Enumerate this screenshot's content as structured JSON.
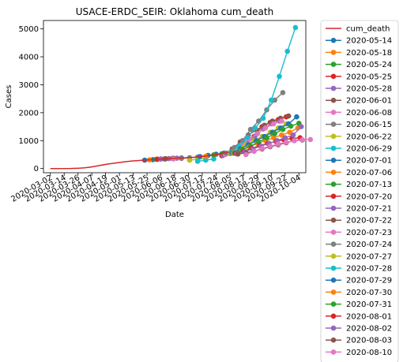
{
  "chart_data": {
    "type": "line",
    "title": "USACE-ERDC_SEIR: Oklahoma cum_death",
    "xlabel": "Date",
    "ylabel": "Cases",
    "x_ticks": [
      "2020-03-02",
      "2020-03-14",
      "2020-03-26",
      "2020-04-07",
      "2020-04-19",
      "2020-05-01",
      "2020-05-13",
      "2020-05-25",
      "2020-06-06",
      "2020-06-18",
      "2020-06-30",
      "2020-07-12",
      "2020-07-24",
      "2020-08-05",
      "2020-08-17",
      "2020-08-29",
      "2020-09-10",
      "2020-09-22",
      "2020-10-04"
    ],
    "x_range": [
      "2020-02-25",
      "2020-10-10"
    ],
    "y_ticks": [
      0,
      1000,
      2000,
      3000,
      4000,
      5000
    ],
    "ylim": [
      -150,
      5300
    ],
    "grid": false,
    "legend_position": "outside-right",
    "observed": {
      "name": "cum_death",
      "color": "#d62728",
      "points": [
        [
          "2020-03-02",
          0
        ],
        [
          "2020-03-20",
          2
        ],
        [
          "2020-03-27",
          10
        ],
        [
          "2020-04-01",
          25
        ],
        [
          "2020-04-07",
          60
        ],
        [
          "2020-04-14",
          110
        ],
        [
          "2020-04-21",
          160
        ],
        [
          "2020-04-28",
          200
        ],
        [
          "2020-05-05",
          240
        ],
        [
          "2020-05-12",
          270
        ],
        [
          "2020-05-19",
          290
        ],
        [
          "2020-05-26",
          310
        ],
        [
          "2020-06-02",
          330
        ],
        [
          "2020-06-09",
          345
        ],
        [
          "2020-06-16",
          360
        ],
        [
          "2020-06-23",
          375
        ],
        [
          "2020-06-30",
          390
        ],
        [
          "2020-07-07",
          410
        ],
        [
          "2020-07-14",
          440
        ],
        [
          "2020-07-21",
          480
        ],
        [
          "2020-07-28",
          530
        ],
        [
          "2020-08-04",
          580
        ]
      ]
    },
    "series": [
      {
        "name": "2020-05-14",
        "color": "#1f77b4",
        "points": [
          [
            "2020-05-23",
            300
          ],
          [
            "2020-05-30",
            320
          ],
          [
            "2020-06-06",
            340
          ]
        ]
      },
      {
        "name": "2020-05-18",
        "color": "#ff7f0e",
        "points": [
          [
            "2020-05-27",
            310
          ],
          [
            "2020-06-03",
            330
          ],
          [
            "2020-06-10",
            345
          ]
        ]
      },
      {
        "name": "2020-05-24",
        "color": "#2ca02c",
        "points": [
          [
            "2020-06-02",
            330
          ],
          [
            "2020-06-09",
            345
          ],
          [
            "2020-06-16",
            360
          ]
        ]
      },
      {
        "name": "2020-05-25",
        "color": "#d62728",
        "points": [
          [
            "2020-06-03",
            335
          ],
          [
            "2020-06-10",
            350
          ],
          [
            "2020-06-17",
            365
          ]
        ]
      },
      {
        "name": "2020-05-28",
        "color": "#9467bd",
        "points": [
          [
            "2020-06-06",
            340
          ],
          [
            "2020-06-13",
            355
          ],
          [
            "2020-06-20",
            370
          ]
        ]
      },
      {
        "name": "2020-06-01",
        "color": "#8c564b",
        "points": [
          [
            "2020-06-10",
            350
          ],
          [
            "2020-06-17",
            365
          ],
          [
            "2020-06-24",
            380
          ]
        ]
      },
      {
        "name": "2020-06-08",
        "color": "#e377c2",
        "points": [
          [
            "2020-06-17",
            340
          ],
          [
            "2020-06-24",
            360
          ],
          [
            "2020-07-01",
            380
          ]
        ]
      },
      {
        "name": "2020-06-15",
        "color": "#7f7f7f",
        "points": [
          [
            "2020-06-24",
            370
          ],
          [
            "2020-07-01",
            390
          ],
          [
            "2020-07-08",
            410
          ]
        ]
      },
      {
        "name": "2020-06-22",
        "color": "#bcbd22",
        "points": [
          [
            "2020-07-01",
            300
          ],
          [
            "2020-07-08",
            330
          ],
          [
            "2020-07-15",
            360
          ]
        ]
      },
      {
        "name": "2020-06-29",
        "color": "#17becf",
        "points": [
          [
            "2020-07-08",
            260
          ],
          [
            "2020-07-15",
            300
          ],
          [
            "2020-07-22",
            340
          ]
        ]
      },
      {
        "name": "2020-07-01",
        "color": "#1f77b4",
        "points": [
          [
            "2020-07-10",
            430
          ],
          [
            "2020-07-17",
            470
          ],
          [
            "2020-07-24",
            510
          ],
          [
            "2020-07-31",
            550
          ]
        ]
      },
      {
        "name": "2020-07-06",
        "color": "#ff7f0e",
        "points": [
          [
            "2020-07-15",
            440
          ],
          [
            "2020-07-22",
            480
          ],
          [
            "2020-07-29",
            520
          ]
        ]
      },
      {
        "name": "2020-07-13",
        "color": "#2ca02c",
        "points": [
          [
            "2020-07-22",
            490
          ],
          [
            "2020-07-29",
            530
          ],
          [
            "2020-08-05",
            570
          ]
        ]
      },
      {
        "name": "2020-07-20",
        "color": "#d62728",
        "points": [
          [
            "2020-07-29",
            460
          ],
          [
            "2020-08-05",
            540
          ],
          [
            "2020-08-12",
            680
          ],
          [
            "2020-08-19",
            900
          ],
          [
            "2020-08-26",
            1150
          ],
          [
            "2020-09-02",
            1500
          ],
          [
            "2020-09-09",
            1650
          ],
          [
            "2020-09-16",
            1750
          ],
          [
            "2020-09-23",
            1850
          ]
        ]
      },
      {
        "name": "2020-07-21",
        "color": "#9467bd",
        "points": [
          [
            "2020-07-30",
            470
          ],
          [
            "2020-08-06",
            550
          ],
          [
            "2020-08-13",
            700
          ],
          [
            "2020-08-20",
            920
          ],
          [
            "2020-08-27",
            1170
          ],
          [
            "2020-09-03",
            1420
          ],
          [
            "2020-09-10",
            1600
          ],
          [
            "2020-09-17",
            1700
          ]
        ]
      },
      {
        "name": "2020-07-22",
        "color": "#8c564b",
        "points": [
          [
            "2020-07-31",
            520
          ],
          [
            "2020-08-07",
            700
          ],
          [
            "2020-08-14",
            950
          ],
          [
            "2020-08-21",
            1200
          ],
          [
            "2020-08-28",
            1380
          ],
          [
            "2020-09-04",
            1550
          ],
          [
            "2020-09-11",
            1700
          ],
          [
            "2020-09-18",
            1800
          ],
          [
            "2020-09-25",
            1880
          ]
        ]
      },
      {
        "name": "2020-07-23",
        "color": "#e377c2",
        "points": [
          [
            "2020-08-01",
            500
          ],
          [
            "2020-08-08",
            650
          ],
          [
            "2020-08-15",
            850
          ],
          [
            "2020-08-22",
            1050
          ],
          [
            "2020-08-29",
            1250
          ],
          [
            "2020-09-05",
            1450
          ],
          [
            "2020-09-12",
            1600
          ],
          [
            "2020-09-19",
            1700
          ]
        ]
      },
      {
        "name": "2020-07-24",
        "color": "#7f7f7f",
        "points": [
          [
            "2020-08-02",
            550
          ],
          [
            "2020-08-09",
            750
          ],
          [
            "2020-08-16",
            1000
          ],
          [
            "2020-08-23",
            1400
          ],
          [
            "2020-08-30",
            1700
          ],
          [
            "2020-09-06",
            2100
          ],
          [
            "2020-09-13",
            2450
          ],
          [
            "2020-09-20",
            2720
          ]
        ]
      },
      {
        "name": "2020-07-27",
        "color": "#bcbd22",
        "points": [
          [
            "2020-08-05",
            560
          ],
          [
            "2020-08-12",
            700
          ],
          [
            "2020-08-19",
            850
          ],
          [
            "2020-08-26",
            1000
          ],
          [
            "2020-09-02",
            1150
          ],
          [
            "2020-09-09",
            1300
          ],
          [
            "2020-09-16",
            1450
          ],
          [
            "2020-09-23",
            1600
          ]
        ]
      },
      {
        "name": "2020-07-28",
        "color": "#17becf",
        "points": [
          [
            "2020-08-06",
            570
          ],
          [
            "2020-08-13",
            800
          ],
          [
            "2020-08-20",
            1100
          ],
          [
            "2020-08-27",
            1450
          ],
          [
            "2020-09-03",
            1800
          ],
          [
            "2020-09-10",
            2450
          ],
          [
            "2020-09-17",
            3300
          ],
          [
            "2020-09-24",
            4200
          ],
          [
            "2020-10-01",
            5050
          ]
        ]
      },
      {
        "name": "2020-07-29",
        "color": "#1f77b4",
        "points": [
          [
            "2020-08-07",
            560
          ],
          [
            "2020-08-14",
            700
          ],
          [
            "2020-08-21",
            850
          ],
          [
            "2020-08-28",
            1000
          ],
          [
            "2020-09-04",
            1150
          ],
          [
            "2020-09-11",
            1300
          ],
          [
            "2020-09-18",
            1450
          ],
          [
            "2020-09-25",
            1600
          ],
          [
            "2020-10-02",
            1850
          ]
        ]
      },
      {
        "name": "2020-07-30",
        "color": "#ff7f0e",
        "points": [
          [
            "2020-08-08",
            550
          ],
          [
            "2020-08-15",
            650
          ],
          [
            "2020-08-22",
            780
          ],
          [
            "2020-08-29",
            900
          ],
          [
            "2020-09-05",
            1000
          ],
          [
            "2020-09-12",
            1100
          ],
          [
            "2020-09-19",
            1200
          ],
          [
            "2020-09-26",
            1300
          ],
          [
            "2020-10-03",
            1450
          ]
        ]
      },
      {
        "name": "2020-07-31",
        "color": "#2ca02c",
        "points": [
          [
            "2020-08-09",
            560
          ],
          [
            "2020-08-16",
            680
          ],
          [
            "2020-08-23",
            800
          ],
          [
            "2020-08-30",
            950
          ],
          [
            "2020-09-06",
            1100
          ],
          [
            "2020-09-13",
            1250
          ],
          [
            "2020-09-20",
            1400
          ],
          [
            "2020-09-27",
            1520
          ],
          [
            "2020-10-04",
            1620
          ]
        ]
      },
      {
        "name": "2020-08-01",
        "color": "#d62728",
        "points": [
          [
            "2020-08-10",
            540
          ],
          [
            "2020-08-17",
            620
          ],
          [
            "2020-08-24",
            720
          ],
          [
            "2020-08-31",
            820
          ],
          [
            "2020-09-07",
            900
          ],
          [
            "2020-09-14",
            970
          ],
          [
            "2020-09-21",
            1030
          ],
          [
            "2020-09-28",
            1080
          ],
          [
            "2020-10-05",
            1100
          ]
        ]
      },
      {
        "name": "2020-08-02",
        "color": "#9467bd",
        "points": [
          [
            "2020-08-11",
            530
          ],
          [
            "2020-08-18",
            600
          ],
          [
            "2020-08-25",
            700
          ],
          [
            "2020-09-01",
            800
          ],
          [
            "2020-09-08",
            900
          ],
          [
            "2020-09-15",
            1000
          ],
          [
            "2020-09-22",
            1100
          ],
          [
            "2020-09-29",
            1200
          ],
          [
            "2020-10-06",
            1500
          ]
        ]
      },
      {
        "name": "2020-08-03",
        "color": "#8c564b",
        "points": [
          [
            "2020-08-12",
            520
          ],
          [
            "2020-08-19",
            560
          ],
          [
            "2020-08-26",
            620
          ],
          [
            "2020-09-02",
            700
          ],
          [
            "2020-09-09",
            780
          ],
          [
            "2020-09-16",
            850
          ],
          [
            "2020-09-23",
            920
          ],
          [
            "2020-09-30",
            1000
          ],
          [
            "2020-10-07",
            1020
          ]
        ]
      },
      {
        "name": "2020-08-10",
        "color": "#e377c2",
        "points": [
          [
            "2020-08-19",
            500
          ],
          [
            "2020-08-26",
            620
          ],
          [
            "2020-09-02",
            720
          ],
          [
            "2020-09-09",
            800
          ],
          [
            "2020-09-16",
            880
          ],
          [
            "2020-09-23",
            940
          ],
          [
            "2020-09-30",
            1000
          ],
          [
            "2020-10-07",
            1030
          ],
          [
            "2020-10-14",
            1040
          ]
        ]
      }
    ]
  }
}
